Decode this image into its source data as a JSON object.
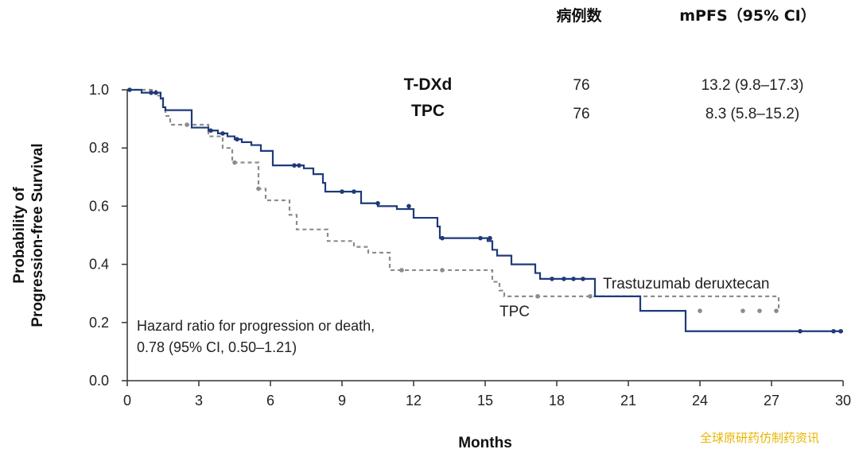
{
  "chart_data": {
    "type": "line",
    "step": true,
    "xlabel": "Months",
    "ylabel_lines": [
      "Probability of",
      "Progression-free Survival"
    ],
    "xlim": [
      0,
      30
    ],
    "ylim": [
      0,
      1
    ],
    "x_ticks": [
      0,
      3,
      6,
      9,
      12,
      15,
      18,
      21,
      24,
      27,
      30
    ],
    "y_ticks": [
      "0.0",
      "0.2",
      "0.4",
      "0.6",
      "0.8",
      "1.0"
    ],
    "grid": false,
    "table": {
      "headers": [
        "病例数",
        "mPFS（95% CI）"
      ],
      "rows": [
        {
          "name": "T-DXd",
          "n": "76",
          "mpfs": "13.2 (9.8–17.3)"
        },
        {
          "name": "TPC",
          "n": "76",
          "mpfs": "8.3 (5.8–15.2)"
        }
      ]
    },
    "annotation": [
      "Hazard ratio for progression or death,",
      "0.78 (95% CI, 0.50–1.21)"
    ],
    "series": [
      {
        "name": "Trastuzumab deruxtecan",
        "color": "#1f3a7a",
        "dash": "solid",
        "steps": [
          [
            0,
            1.0
          ],
          [
            0.6,
            0.99
          ],
          [
            1.4,
            0.97
          ],
          [
            1.5,
            0.94
          ],
          [
            1.6,
            0.93
          ],
          [
            2.7,
            0.87
          ],
          [
            3.4,
            0.86
          ],
          [
            3.8,
            0.85
          ],
          [
            4.2,
            0.84
          ],
          [
            4.5,
            0.83
          ],
          [
            4.8,
            0.82
          ],
          [
            5.2,
            0.81
          ],
          [
            5.6,
            0.79
          ],
          [
            6.1,
            0.74
          ],
          [
            7.4,
            0.73
          ],
          [
            7.8,
            0.71
          ],
          [
            8.2,
            0.68
          ],
          [
            8.3,
            0.65
          ],
          [
            9.8,
            0.61
          ],
          [
            10.5,
            0.6
          ],
          [
            11.2,
            0.6
          ],
          [
            11.3,
            0.59
          ],
          [
            12.0,
            0.56
          ],
          [
            13.0,
            0.53
          ],
          [
            13.1,
            0.49
          ],
          [
            15.1,
            0.48
          ],
          [
            15.3,
            0.45
          ],
          [
            15.5,
            0.43
          ],
          [
            16.1,
            0.4
          ],
          [
            17.1,
            0.37
          ],
          [
            17.3,
            0.35
          ],
          [
            19.6,
            0.29
          ],
          [
            21.5,
            0.24
          ],
          [
            23.4,
            0.17
          ],
          [
            30,
            0.17
          ]
        ],
        "censors": [
          [
            0.1,
            1.0
          ],
          [
            1.0,
            0.99
          ],
          [
            1.2,
            0.99
          ],
          [
            3.5,
            0.86
          ],
          [
            4.0,
            0.85
          ],
          [
            4.6,
            0.83
          ],
          [
            7.0,
            0.74
          ],
          [
            7.2,
            0.74
          ],
          [
            9.0,
            0.65
          ],
          [
            9.5,
            0.65
          ],
          [
            10.5,
            0.61
          ],
          [
            11.8,
            0.6
          ],
          [
            13.2,
            0.49
          ],
          [
            14.8,
            0.49
          ],
          [
            15.2,
            0.49
          ],
          [
            17.8,
            0.35
          ],
          [
            18.3,
            0.35
          ],
          [
            18.7,
            0.35
          ],
          [
            19.1,
            0.35
          ],
          [
            28.2,
            0.17
          ],
          [
            29.6,
            0.17
          ],
          [
            29.9,
            0.17
          ]
        ]
      },
      {
        "name": "TPC",
        "color": "#8c8c8c",
        "dash": "dashed",
        "steps": [
          [
            0,
            1.0
          ],
          [
            1.2,
            0.98
          ],
          [
            1.5,
            0.93
          ],
          [
            1.6,
            0.91
          ],
          [
            1.8,
            0.88
          ],
          [
            3.4,
            0.84
          ],
          [
            4.0,
            0.8
          ],
          [
            4.4,
            0.75
          ],
          [
            5.5,
            0.66
          ],
          [
            5.8,
            0.62
          ],
          [
            6.8,
            0.57
          ],
          [
            7.1,
            0.52
          ],
          [
            8.4,
            0.48
          ],
          [
            9.5,
            0.46
          ],
          [
            10.1,
            0.44
          ],
          [
            11.0,
            0.38
          ],
          [
            15.3,
            0.34
          ],
          [
            15.6,
            0.31
          ],
          [
            15.8,
            0.29
          ],
          [
            27.3,
            0.24
          ]
        ],
        "censors": [
          [
            1.0,
            0.99
          ],
          [
            2.5,
            0.88
          ],
          [
            4.5,
            0.75
          ],
          [
            5.5,
            0.66
          ],
          [
            11.5,
            0.38
          ],
          [
            13.2,
            0.38
          ],
          [
            17.2,
            0.29
          ],
          [
            19.4,
            0.29
          ],
          [
            24.0,
            0.24
          ],
          [
            25.8,
            0.24
          ],
          [
            26.5,
            0.24
          ],
          [
            27.2,
            0.24
          ]
        ]
      }
    ],
    "series_labels": [
      "Trastuzumab deruxtecan",
      "TPC"
    ]
  },
  "watermark": "全球原研药仿制药资讯"
}
